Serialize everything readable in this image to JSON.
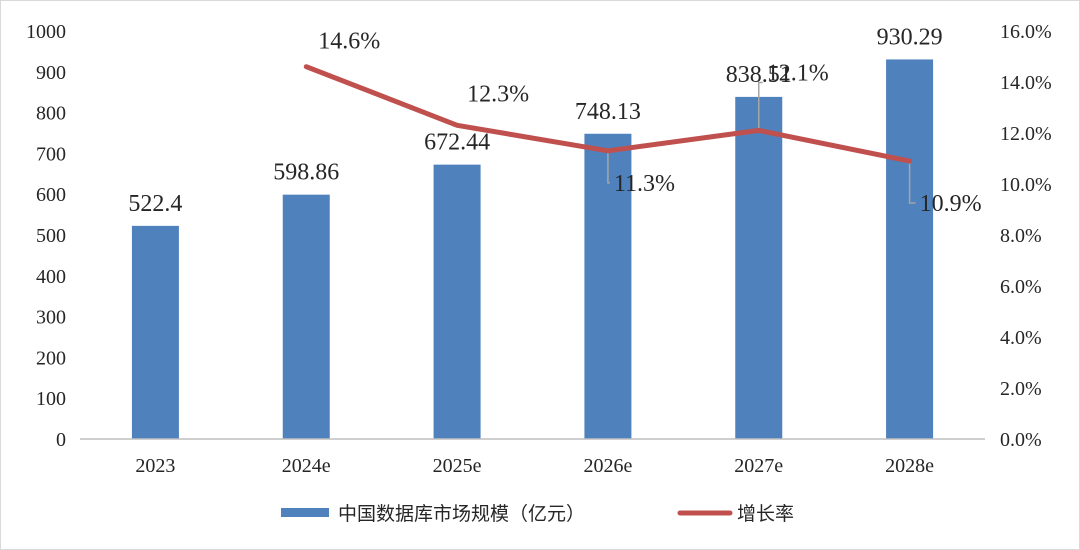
{
  "chart_data": {
    "type": "bar",
    "categories": [
      "2023",
      "2024e",
      "2025e",
      "2026e",
      "2027e",
      "2028e"
    ],
    "series": [
      {
        "name": "中国数据库市场规模（亿元）",
        "type": "bar",
        "axis": "left",
        "color": "#4f81bd",
        "values": [
          522.4,
          598.86,
          672.44,
          748.13,
          838.51,
          930.29
        ],
        "labels": [
          "522.4",
          "598.86",
          "672.44",
          "748.13",
          "838.51",
          "930.29"
        ]
      },
      {
        "name": "增长率",
        "type": "line",
        "axis": "right",
        "color": "#c0504d",
        "values": [
          null,
          14.6,
          12.3,
          11.3,
          12.1,
          10.9
        ],
        "labels": [
          "",
          "14.6%",
          "12.3%",
          "11.3%",
          "12.1%",
          "10.9%"
        ]
      }
    ],
    "y_left": {
      "ylim": [
        0,
        1000
      ],
      "ticks": [
        "0",
        "100",
        "200",
        "300",
        "400",
        "500",
        "600",
        "700",
        "800",
        "900",
        "1000"
      ]
    },
    "y_right": {
      "ylim": [
        0,
        16
      ],
      "ticks": [
        "0.0%",
        "2.0%",
        "4.0%",
        "6.0%",
        "8.0%",
        "10.0%",
        "12.0%",
        "14.0%",
        "16.0%"
      ]
    },
    "grid": false,
    "legend": "bottom"
  }
}
